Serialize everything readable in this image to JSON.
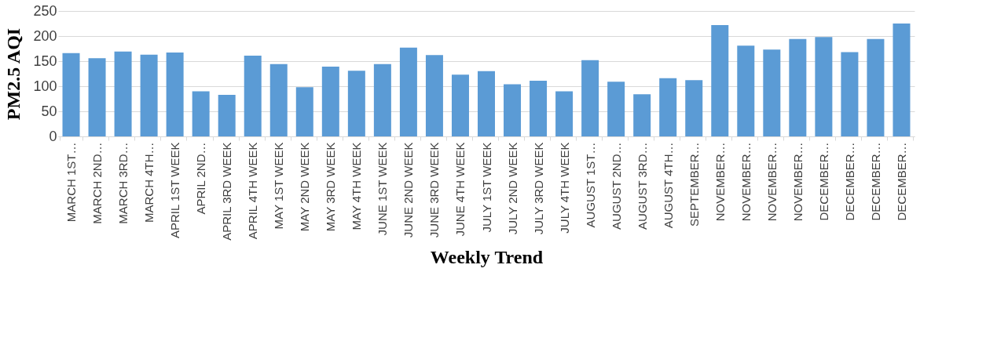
{
  "chart_data": {
    "type": "bar",
    "xlabel": "Weekly Trend",
    "ylabel": "PM2.5 AQI",
    "categories": [
      "MARCH 1ST…",
      "MARCH 2ND…",
      "MARCH 3RD…",
      "MARCH 4TH…",
      "APRIL 1ST WEEK",
      "APRIL 2ND…",
      "APRIL 3RD WEEK",
      "APRIL 4TH WEEK",
      "MAY 1ST WEEK",
      "MAY 2ND WEEK",
      "MAY 3RD WEEK",
      "MAY 4TH WEEK",
      "JUNE 1ST WEEK",
      "JUNE 2ND WEEK",
      "JUNE 3RD WEEK",
      "JUNE 4TH WEEK",
      "JULY 1ST WEEK",
      "JULY 2ND WEEK",
      "JULY 3RD WEEK",
      "JULY 4TH WEEK",
      "AUGUST 1ST…",
      "AUGUST 2ND…",
      "AUGUST 3RD…",
      "AUGUST 4TH…",
      "SEPTEMBER…",
      "NOVEMBER…",
      "NOVEMBER…",
      "NOVEMBER…",
      "NOVEMBER…",
      "DECEMBER…",
      "DECEMBER…",
      "DECEMBER…",
      "DECEMBER…"
    ],
    "values": [
      166,
      156,
      169,
      163,
      167,
      90,
      83,
      161,
      144,
      98,
      139,
      131,
      144,
      177,
      162,
      123,
      130,
      104,
      111,
      90,
      152,
      109,
      84,
      116,
      112,
      222,
      181,
      173,
      194,
      198,
      168,
      194,
      225
    ],
    "color": "#5b9bd5",
    "ylim": [
      0,
      250
    ],
    "yticks": [
      0,
      50,
      100,
      150,
      200,
      250
    ],
    "grid": "y"
  }
}
